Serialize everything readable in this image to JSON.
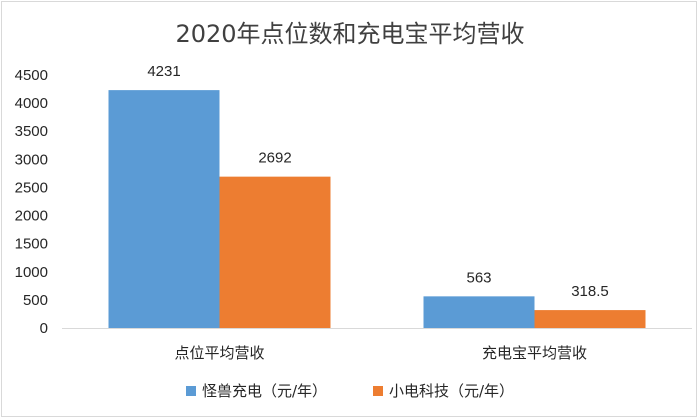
{
  "chart_data": {
    "type": "bar",
    "title": "2020年点位数和充电宝平均营收",
    "categories": [
      "点位平均营收",
      "充电宝平均营收"
    ],
    "series": [
      {
        "name": "怪兽充电（元/年）",
        "values": [
          4231,
          563
        ],
        "color": "#5b9bd5"
      },
      {
        "name": "小电科技（元/年）",
        "values": [
          2692,
          318.5
        ],
        "color": "#ed7d31"
      }
    ],
    "ylim": [
      0,
      4500
    ],
    "yticks": [
      0,
      500,
      1000,
      1500,
      2000,
      2500,
      3000,
      3500,
      4000,
      4500
    ],
    "data_labels": [
      [
        "4231",
        "563"
      ],
      [
        "2692",
        "318.5"
      ]
    ],
    "xlabel": "",
    "ylabel": "",
    "grid": false,
    "legend_position": "bottom"
  }
}
